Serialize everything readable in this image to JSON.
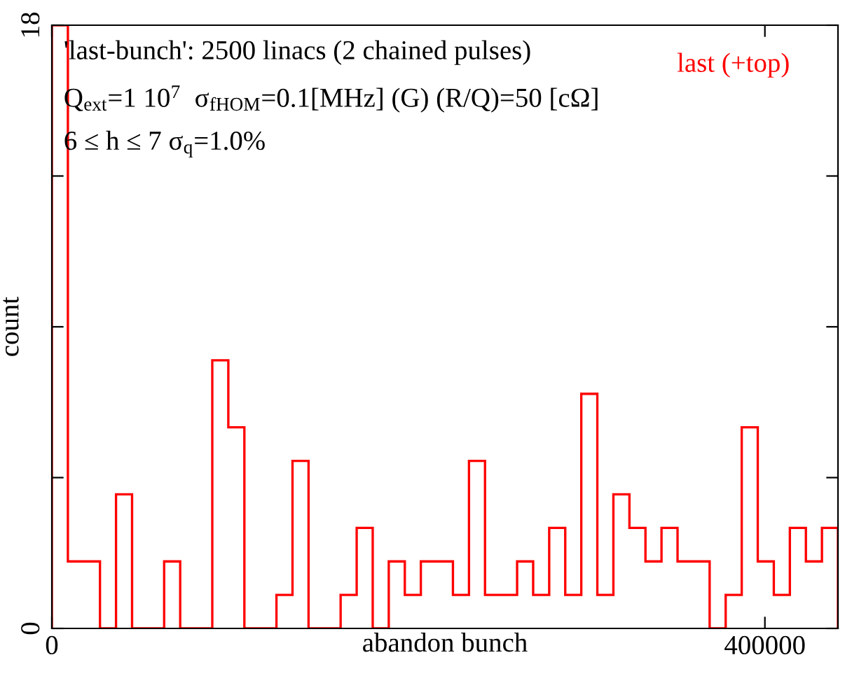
{
  "chart_data": {
    "type": "histogram",
    "xlabel": "abandon bunch",
    "ylabel": "count",
    "annotations": [
      "'last-bunch': 2500 linacs (2 chained pulses)",
      "Q$_{ext}$=1 10$^{7}$  σ$_{fHOM}$=0.1[MHz] (G) (R/Q)=50 [cΩ]",
      "6 ≤ h ≤ 7 σ$_{q}$=1.0%"
    ],
    "bins": [
      0,
      9000,
      18000,
      27000,
      36000,
      45000,
      54000,
      63000,
      72000,
      81000,
      90000,
      99000,
      108000,
      117000,
      126000,
      135000,
      144000,
      153000,
      162000,
      171000,
      180000,
      189000,
      198000,
      207000,
      216000,
      225000,
      234000,
      243000,
      252000,
      261000,
      270000,
      279000,
      288000,
      297000,
      306000,
      315000,
      324000,
      333000,
      342000,
      351000,
      360000,
      369000,
      378000,
      387000,
      396000,
      405000,
      414000,
      423000,
      432000,
      441000
    ],
    "series": [
      {
        "name": "last (+top)",
        "color": "#ff0000",
        "values": [
          18,
          2,
          2,
          0,
          4,
          0,
          0,
          2,
          0,
          0,
          8,
          6,
          0,
          0,
          1,
          5,
          0,
          0,
          1,
          3,
          0,
          2,
          1,
          2,
          2,
          1,
          5,
          1,
          1,
          2,
          1,
          3,
          1,
          7,
          1,
          4,
          3,
          2,
          3,
          2,
          2,
          0,
          1,
          6,
          2,
          1,
          3,
          2,
          3
        ]
      }
    ],
    "xlim": [
      0,
      441000
    ],
    "ylim": [
      0,
      18
    ],
    "xticks": [
      0,
      400000
    ],
    "yticks": [
      0,
      {
        "value": 4.5,
        "label": null
      },
      {
        "value": 9,
        "label": null
      },
      {
        "value": 13.5,
        "label": null
      },
      18
    ],
    "legend": "top right",
    "grid": false
  }
}
